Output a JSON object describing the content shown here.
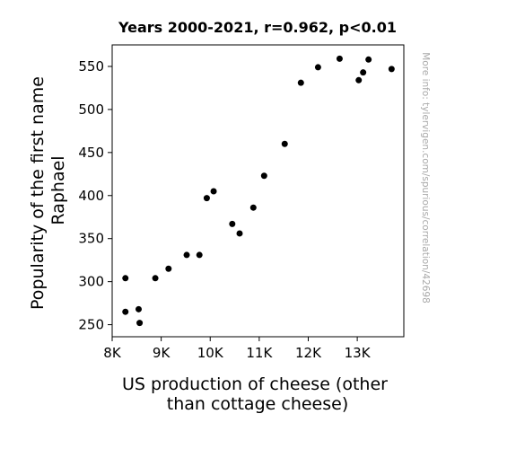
{
  "chart_data": {
    "type": "scatter",
    "title": "Years 2000-2021, r=0.962, p<0.01",
    "xlabel_lines": [
      "US production of cheese (other",
      "than cottage cheese)"
    ],
    "ylabel_lines": [
      "Popularity of the first name",
      "Raphael"
    ],
    "xlim": [
      8000,
      13950
    ],
    "ylim": [
      236,
      575
    ],
    "x_ticks": [
      8000,
      9000,
      10000,
      11000,
      12000,
      13000
    ],
    "x_tick_labels": [
      "8K",
      "9K",
      "10K",
      "11K",
      "12K",
      "13K"
    ],
    "y_ticks": [
      250,
      300,
      350,
      400,
      450,
      500,
      550
    ],
    "y_tick_labels": [
      "250",
      "300",
      "350",
      "400",
      "450",
      "500",
      "550"
    ],
    "grid": false,
    "marker_color": "#000000",
    "watermark": "More info: tylervigen.com/spurious/correlation/42698",
    "points": [
      {
        "x": 8270,
        "y": 304
      },
      {
        "x": 8270,
        "y": 265
      },
      {
        "x": 8540,
        "y": 268
      },
      {
        "x": 8560,
        "y": 252
      },
      {
        "x": 8880,
        "y": 304
      },
      {
        "x": 9150,
        "y": 315
      },
      {
        "x": 9520,
        "y": 331
      },
      {
        "x": 9780,
        "y": 331
      },
      {
        "x": 9930,
        "y": 397
      },
      {
        "x": 10070,
        "y": 405
      },
      {
        "x": 10450,
        "y": 367
      },
      {
        "x": 10600,
        "y": 356
      },
      {
        "x": 10880,
        "y": 386
      },
      {
        "x": 11100,
        "y": 423
      },
      {
        "x": 11520,
        "y": 460
      },
      {
        "x": 11850,
        "y": 531
      },
      {
        "x": 12200,
        "y": 549
      },
      {
        "x": 12640,
        "y": 559
      },
      {
        "x": 13030,
        "y": 534
      },
      {
        "x": 13120,
        "y": 543
      },
      {
        "x": 13230,
        "y": 558
      },
      {
        "x": 13700,
        "y": 547
      }
    ]
  }
}
